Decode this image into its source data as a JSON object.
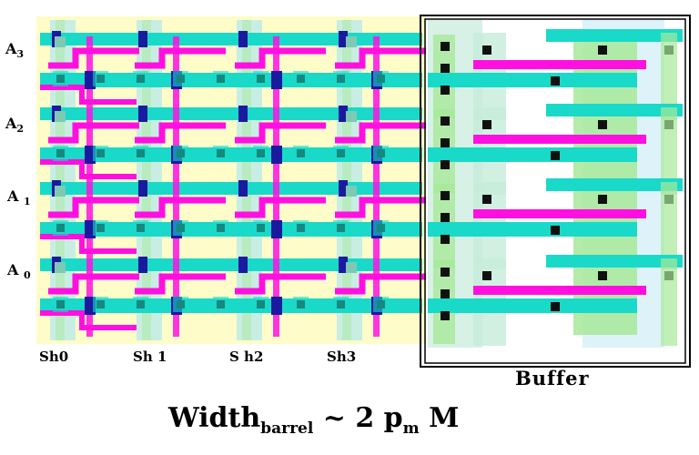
{
  "row_labels": [
    {
      "base": "A",
      "sub": "3"
    },
    {
      "base": "A",
      "sub": "2"
    },
    {
      "base": "A",
      "sub": "1"
    },
    {
      "base": "A",
      "sub": "0"
    }
  ],
  "column_labels": [
    "Sh0",
    "Sh 1",
    "S h2",
    "Sh3"
  ],
  "buffer_label": "Buffer",
  "caption": {
    "main": "Width",
    "sub": "barrel",
    "rest": " ~ 2 p",
    "sub2": "m",
    "tail": " M"
  },
  "colors": {
    "background": "#fefcc8",
    "metal_cyan": "#19d9c9",
    "metal_magenta": "#ff10e0",
    "via_dark_blue": "#1a1a9e",
    "contact_black": "#101010",
    "diffusion_green": "#a8e89a",
    "poly_light": "#b0e8f0",
    "buffer_border": "#000000"
  }
}
